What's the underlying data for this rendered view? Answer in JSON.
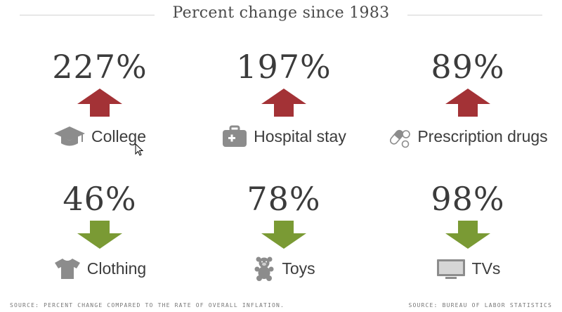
{
  "title": "Percent change since 1983",
  "colors": {
    "up": "#a33236",
    "down": "#7a9a34",
    "icon": "#8c8c8c",
    "text": "#3b3b3b"
  },
  "items": [
    {
      "value": "227%",
      "direction": "up",
      "label": "College",
      "icon": "graduation-cap-icon"
    },
    {
      "value": "197%",
      "direction": "up",
      "label": "Hospital stay",
      "icon": "medical-kit-icon"
    },
    {
      "value": "89%",
      "direction": "up",
      "label": "Prescription drugs",
      "icon": "pills-icon"
    },
    {
      "value": "46%",
      "direction": "down",
      "label": "Clothing",
      "icon": "t-shirt-icon"
    },
    {
      "value": "78%",
      "direction": "down",
      "label": "Toys",
      "icon": "teddy-bear-icon"
    },
    {
      "value": "98%",
      "direction": "down",
      "label": "TVs",
      "icon": "tv-icon"
    }
  ],
  "chart_data": {
    "type": "table",
    "title": "Percent change since 1983",
    "categories": [
      "College",
      "Hospital stay",
      "Prescription drugs",
      "Clothing",
      "Toys",
      "TVs"
    ],
    "values": [
      227,
      197,
      89,
      46,
      78,
      98
    ],
    "direction": [
      "up",
      "up",
      "up",
      "down",
      "down",
      "down"
    ],
    "unit": "%"
  },
  "footer": {
    "left": "SOURCE: PERCENT CHANGE COMPARED TO THE RATE OF OVERALL INFLATION.",
    "right": "SOURCE: BUREAU OF LABOR STATISTICS"
  }
}
